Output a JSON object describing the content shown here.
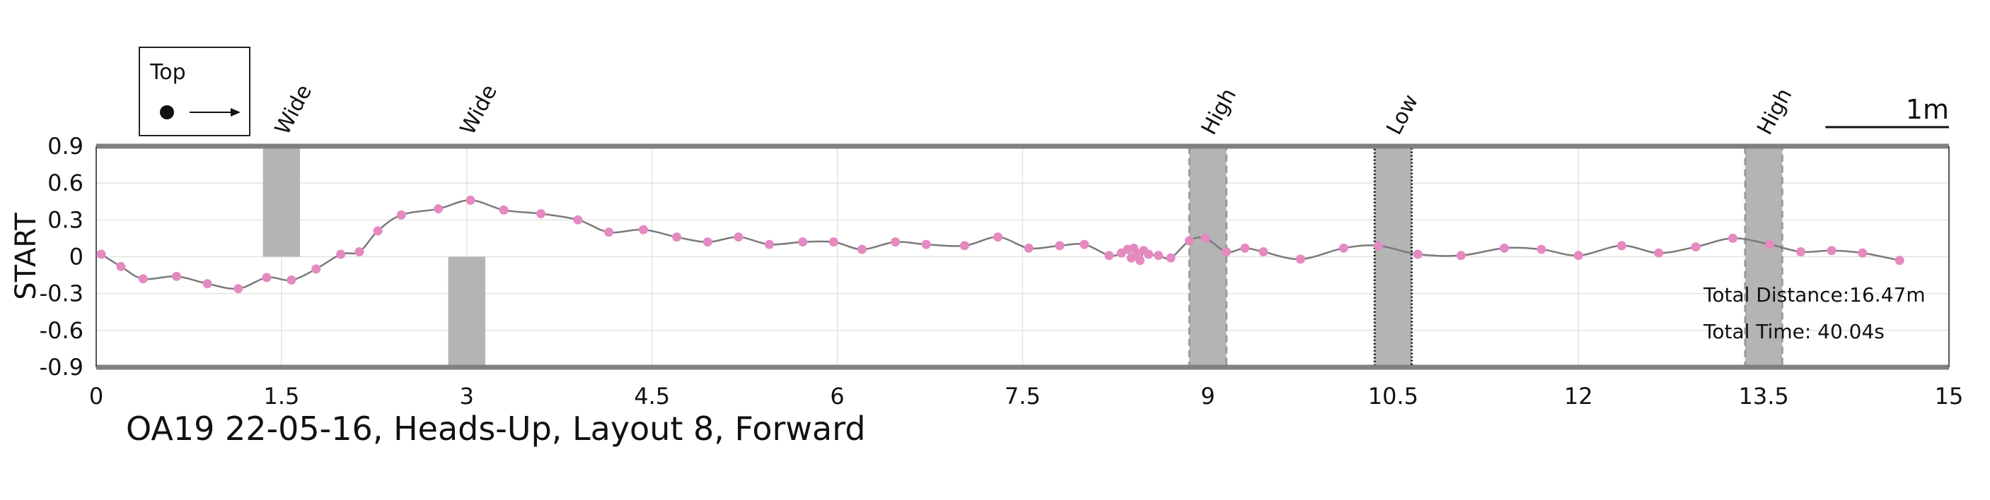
{
  "chart_data": {
    "type": "line",
    "title": "OA19 22-05-16, Heads-Up, Layout 8, Forward",
    "xlabel": "",
    "ylabel": "START",
    "xlim": [
      0,
      15
    ],
    "ylim": [
      -0.9,
      0.9
    ],
    "xticks": [
      "0",
      "1.5",
      "3",
      "4.5",
      "6",
      "7.5",
      "9",
      "10.5",
      "12",
      "13.5",
      "15"
    ],
    "yticks": [
      "0.9",
      "0.6",
      "0.3",
      "0",
      "-0.3",
      "-0.6",
      "-0.9"
    ],
    "grid": true,
    "legend": {
      "label": "Top",
      "position": "top-left"
    },
    "scale_bar": {
      "label": "1m",
      "length": 1,
      "x_start": 14.0
    },
    "colors": {
      "trace": "#7a7a7a",
      "marker": "#e58ac0",
      "bar_fill": "#b4b4b4",
      "frame": "#808080",
      "text": "#111111"
    },
    "obstacles": [
      {
        "label": "Wide",
        "x": 1.5,
        "width": 0.3,
        "y_from": 0.0,
        "y_to": 0.9,
        "border": "none"
      },
      {
        "label": "Wide",
        "x": 3.0,
        "width": 0.3,
        "y_from": -0.9,
        "y_to": 0.0,
        "border": "none"
      },
      {
        "label": "High",
        "x": 9.0,
        "width": 0.3,
        "y_from": -0.9,
        "y_to": 0.9,
        "border": "dashed"
      },
      {
        "label": "Low",
        "x": 10.5,
        "width": 0.3,
        "y_from": -0.9,
        "y_to": 0.9,
        "border": "dotted"
      },
      {
        "label": "High",
        "x": 13.5,
        "width": 0.3,
        "y_from": -0.9,
        "y_to": 0.9,
        "border": "dashed"
      }
    ],
    "series": [
      {
        "points": [
          [
            0.04,
            0.02
          ],
          [
            0.2,
            -0.08
          ],
          [
            0.38,
            -0.18
          ],
          [
            0.65,
            -0.16
          ],
          [
            0.9,
            -0.22
          ],
          [
            1.15,
            -0.26
          ],
          [
            1.38,
            -0.17
          ],
          [
            1.58,
            -0.19
          ],
          [
            1.78,
            -0.1
          ],
          [
            1.98,
            0.02
          ],
          [
            2.13,
            0.04
          ],
          [
            2.28,
            0.21
          ],
          [
            2.47,
            0.34
          ],
          [
            2.77,
            0.39
          ],
          [
            3.03,
            0.46
          ],
          [
            3.3,
            0.38
          ],
          [
            3.6,
            0.35
          ],
          [
            3.9,
            0.3
          ],
          [
            4.15,
            0.2
          ],
          [
            4.43,
            0.22
          ],
          [
            4.7,
            0.16
          ],
          [
            4.95,
            0.12
          ],
          [
            5.2,
            0.16
          ],
          [
            5.45,
            0.1
          ],
          [
            5.72,
            0.12
          ],
          [
            5.97,
            0.12
          ],
          [
            6.2,
            0.06
          ],
          [
            6.47,
            0.12
          ],
          [
            6.72,
            0.1
          ],
          [
            7.03,
            0.09
          ],
          [
            7.3,
            0.16
          ],
          [
            7.55,
            0.07
          ],
          [
            7.8,
            0.09
          ],
          [
            8.0,
            0.1
          ],
          [
            8.2,
            0.01
          ],
          [
            8.3,
            0.03
          ],
          [
            8.35,
            0.06
          ],
          [
            8.38,
            -0.01
          ],
          [
            8.4,
            0.07
          ],
          [
            8.42,
            0.03
          ],
          [
            8.45,
            -0.03
          ],
          [
            8.48,
            0.05
          ],
          [
            8.52,
            0.02
          ],
          [
            8.6,
            0.01
          ],
          [
            8.7,
            -0.01
          ],
          [
            8.85,
            0.13
          ],
          [
            8.98,
            0.15
          ],
          [
            9.15,
            0.04
          ],
          [
            9.3,
            0.07
          ],
          [
            9.45,
            0.04
          ],
          [
            9.75,
            -0.02
          ],
          [
            10.1,
            0.07
          ],
          [
            10.38,
            0.09
          ],
          [
            10.7,
            0.02
          ],
          [
            11.05,
            0.01
          ],
          [
            11.4,
            0.07
          ],
          [
            11.7,
            0.06
          ],
          [
            12.0,
            0.01
          ],
          [
            12.35,
            0.09
          ],
          [
            12.65,
            0.03
          ],
          [
            12.95,
            0.08
          ],
          [
            13.25,
            0.15
          ],
          [
            13.55,
            0.1
          ],
          [
            13.8,
            0.04
          ],
          [
            14.05,
            0.05
          ],
          [
            14.3,
            0.03
          ],
          [
            14.6,
            -0.03
          ]
        ]
      }
    ],
    "annotations": [
      "Total Distance:16.47m",
      "Total Time: 40.04s"
    ]
  }
}
